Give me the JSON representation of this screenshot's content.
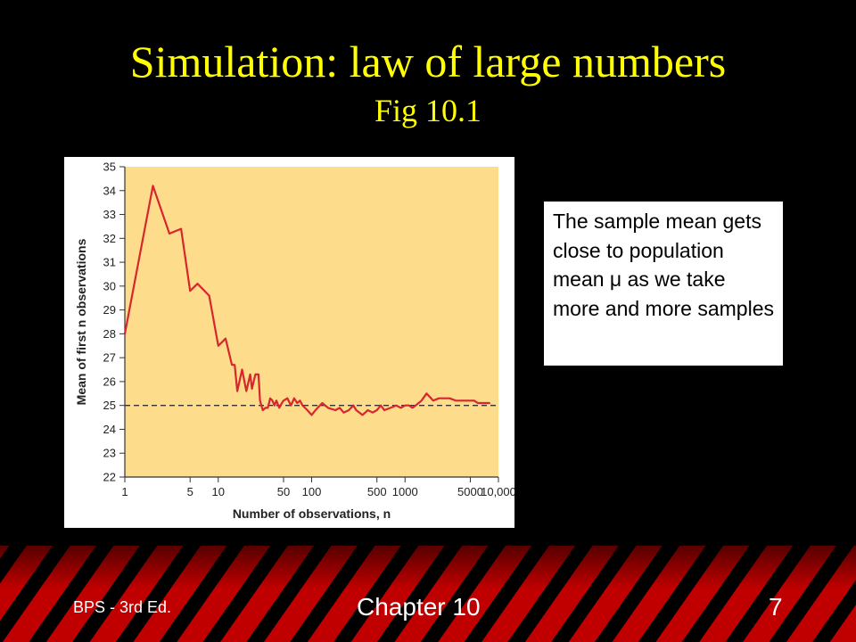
{
  "slide": {
    "title": "Simulation: law of large numbers",
    "subtitle": "Fig 10.1",
    "title_color": "#ffff00",
    "background": "#000000",
    "callout_text": "The sample mean gets close to population mean μ as we take more and more samples",
    "footer": {
      "left": "BPS - 3rd Ed.",
      "center": "Chapter 10",
      "right": "7"
    }
  },
  "chart_data": {
    "type": "line",
    "title": "",
    "xlabel": "Number of observations, n",
    "ylabel": "Mean of first n observations",
    "x_scale": "log",
    "xlim": [
      1,
      10000
    ],
    "ylim": [
      22,
      35
    ],
    "x_ticks": [
      1,
      5,
      10,
      50,
      100,
      500,
      1000,
      5000,
      10000
    ],
    "x_tick_labels": [
      "1",
      "5",
      "10",
      "50",
      "100",
      "500",
      "1000",
      "5000",
      "10,000"
    ],
    "y_ticks": [
      22,
      23,
      24,
      25,
      26,
      27,
      28,
      29,
      30,
      31,
      32,
      33,
      34,
      35
    ],
    "plot_background": "#fddc8c",
    "line_color": "#d7262d",
    "reference_line": {
      "y": 25,
      "style": "dashed",
      "color": "#333333"
    },
    "series": [
      {
        "x": [
          1,
          2,
          3,
          4,
          5,
          6,
          8,
          10,
          12,
          14,
          15,
          16,
          18,
          20,
          22,
          23,
          25,
          27,
          28,
          30,
          32,
          34,
          36,
          38,
          40,
          42,
          45,
          48,
          50,
          55,
          60,
          65,
          70,
          75,
          80,
          90,
          100,
          110,
          130,
          150,
          180,
          200,
          220,
          250,
          280,
          300,
          350,
          400,
          450,
          500,
          550,
          600,
          700,
          800,
          900,
          1000,
          1100,
          1200,
          1300,
          1500,
          1700,
          2000,
          2300,
          2600,
          3000,
          3500,
          4000,
          4500,
          5000,
          5500,
          6000,
          6500,
          7000,
          8000
        ],
        "y": [
          28,
          34.2,
          32.2,
          32.4,
          29.8,
          30.1,
          29.6,
          27.5,
          27.8,
          26.7,
          26.7,
          25.6,
          26.5,
          25.6,
          26.3,
          25.7,
          26.3,
          26.3,
          25.2,
          24.8,
          24.9,
          24.9,
          25.3,
          25.2,
          25.0,
          25.2,
          24.9,
          25.1,
          25.2,
          25.3,
          25.0,
          25.3,
          25.1,
          25.2,
          25.0,
          24.8,
          24.6,
          24.8,
          25.1,
          24.9,
          24.8,
          24.9,
          24.7,
          24.8,
          25.0,
          24.8,
          24.6,
          24.8,
          24.7,
          24.8,
          25.0,
          24.8,
          24.9,
          25.0,
          24.9,
          25.0,
          25.0,
          24.9,
          25.0,
          25.2,
          25.5,
          25.2,
          25.3,
          25.3,
          25.3,
          25.2,
          25.2,
          25.2,
          25.2,
          25.2,
          25.1,
          25.1,
          25.1,
          25.1
        ]
      }
    ]
  }
}
